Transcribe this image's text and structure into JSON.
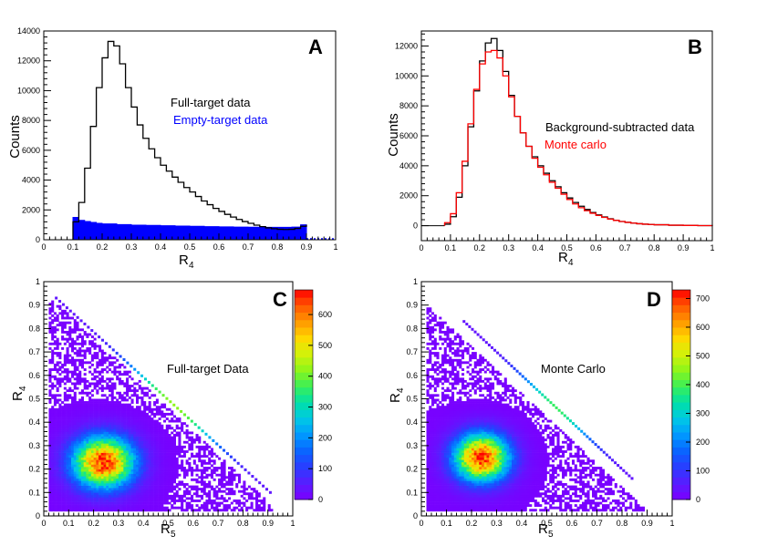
{
  "chart_data": [
    {
      "panel": "A",
      "type": "histogram",
      "xlabel": "R",
      "xlabel_sub": "4",
      "ylabel": "Counts",
      "xlim": [
        0,
        1
      ],
      "ylim": [
        0,
        14000
      ],
      "xticks": [
        "0",
        "0.1",
        "0.2",
        "0.3",
        "0.4",
        "0.5",
        "0.6",
        "0.7",
        "0.8",
        "0.9",
        "1"
      ],
      "yticks": [
        "0",
        "2000",
        "4000",
        "6000",
        "8000",
        "10000",
        "12000",
        "14000"
      ],
      "legend": [
        "Full-target data",
        "Empty-target data"
      ],
      "series": [
        {
          "name": "Full-target data",
          "color": "#000000",
          "style": "step",
          "x": [
            0.1,
            0.12,
            0.14,
            0.16,
            0.18,
            0.2,
            0.22,
            0.24,
            0.26,
            0.28,
            0.3,
            0.32,
            0.34,
            0.36,
            0.38,
            0.4,
            0.42,
            0.44,
            0.46,
            0.48,
            0.5,
            0.52,
            0.54,
            0.56,
            0.58,
            0.6,
            0.62,
            0.64,
            0.66,
            0.68,
            0.7,
            0.72,
            0.74,
            0.76,
            0.78,
            0.8,
            0.82,
            0.84,
            0.86,
            0.88,
            0.9
          ],
          "values": [
            1200,
            2500,
            4800,
            7600,
            10200,
            12200,
            13300,
            13000,
            11800,
            10200,
            8900,
            7700,
            6800,
            6100,
            5500,
            5000,
            4600,
            4200,
            3850,
            3500,
            3200,
            2900,
            2600,
            2350,
            2100,
            1900,
            1700,
            1520,
            1360,
            1220,
            1100,
            980,
            880,
            800,
            740,
            700,
            690,
            700,
            760,
            900,
            1000
          ]
        },
        {
          "name": "Empty-target data",
          "color": "#0000ff",
          "style": "filled",
          "x": [
            0.1,
            0.12,
            0.14,
            0.16,
            0.18,
            0.2,
            0.25,
            0.3,
            0.35,
            0.4,
            0.45,
            0.5,
            0.55,
            0.6,
            0.65,
            0.7,
            0.75,
            0.8,
            0.85,
            0.88,
            0.9
          ],
          "values": [
            1500,
            1300,
            1220,
            1160,
            1100,
            1060,
            1020,
            980,
            960,
            940,
            920,
            900,
            880,
            860,
            850,
            840,
            830,
            830,
            850,
            1000,
            1050
          ]
        }
      ]
    },
    {
      "panel": "B",
      "type": "histogram",
      "xlabel": "R",
      "xlabel_sub": "4",
      "ylabel": "Counts",
      "xlim": [
        0,
        1
      ],
      "ylim": [
        -1000,
        13000
      ],
      "xticks": [
        "0",
        "0.1",
        "0.2",
        "0.3",
        "0.4",
        "0.5",
        "0.6",
        "0.7",
        "0.8",
        "0.9",
        "1"
      ],
      "yticks": [
        "0",
        "2000",
        "4000",
        "6000",
        "8000",
        "10000",
        "12000"
      ],
      "legend": [
        "Background-subtracted data",
        "Monte carlo"
      ],
      "series": [
        {
          "name": "Background-subtracted data",
          "color": "#000000",
          "style": "step",
          "x": [
            0.08,
            0.1,
            0.12,
            0.14,
            0.16,
            0.18,
            0.2,
            0.22,
            0.24,
            0.26,
            0.28,
            0.3,
            0.32,
            0.34,
            0.36,
            0.38,
            0.4,
            0.42,
            0.44,
            0.46,
            0.48,
            0.5,
            0.52,
            0.54,
            0.56,
            0.58,
            0.6,
            0.62,
            0.64,
            0.66,
            0.68,
            0.7,
            0.72,
            0.74,
            0.76,
            0.78,
            0.8,
            0.85,
            0.9,
            0.95,
            1.0
          ],
          "values": [
            100,
            600,
            1900,
            4000,
            6600,
            9000,
            11000,
            12200,
            12500,
            11700,
            10300,
            8700,
            7300,
            6200,
            5300,
            4600,
            4000,
            3500,
            3000,
            2600,
            2200,
            1850,
            1550,
            1300,
            1080,
            880,
            720,
            580,
            460,
            360,
            280,
            220,
            170,
            130,
            100,
            80,
            60,
            30,
            15,
            5,
            0
          ]
        },
        {
          "name": "Monte carlo",
          "color": "#ff0000",
          "style": "step",
          "x": [
            0.08,
            0.1,
            0.12,
            0.14,
            0.16,
            0.18,
            0.2,
            0.22,
            0.24,
            0.26,
            0.28,
            0.3,
            0.32,
            0.34,
            0.36,
            0.38,
            0.4,
            0.42,
            0.44,
            0.46,
            0.48,
            0.5,
            0.52,
            0.54,
            0.56,
            0.58,
            0.6,
            0.62,
            0.64,
            0.66,
            0.68,
            0.7,
            0.72,
            0.74,
            0.76,
            0.78,
            0.8,
            0.85,
            0.9,
            0.95,
            1.0
          ],
          "values": [
            200,
            800,
            2200,
            4300,
            6800,
            9100,
            10800,
            11600,
            11700,
            11200,
            10000,
            8600,
            7300,
            6200,
            5300,
            4500,
            3900,
            3400,
            2900,
            2500,
            2100,
            1750,
            1450,
            1200,
            1000,
            830,
            680,
            550,
            440,
            350,
            280,
            220,
            170,
            130,
            100,
            80,
            60,
            30,
            15,
            5,
            0
          ]
        }
      ]
    },
    {
      "panel": "C",
      "type": "heatmap",
      "label": "Full-target Data",
      "xlabel": "R",
      "xlabel_sub": "5",
      "ylabel": "R",
      "ylabel_sub": "4",
      "xlim": [
        0,
        1
      ],
      "ylim": [
        0,
        1
      ],
      "zlim": [
        0,
        680
      ],
      "xticks": [
        "0",
        "0.1",
        "0.2",
        "0.3",
        "0.4",
        "0.5",
        "0.6",
        "0.7",
        "0.8",
        "0.9",
        "1"
      ],
      "yticks": [
        "0",
        "0.1",
        "0.2",
        "0.3",
        "0.4",
        "0.5",
        "0.6",
        "0.7",
        "0.8",
        "0.9",
        "1"
      ],
      "zticks": [
        0,
        100,
        200,
        300,
        400,
        500,
        600
      ],
      "peak": {
        "x": 0.24,
        "y": 0.23,
        "z": 650
      },
      "diagonal_edge": {
        "from": [
          0.05,
          0.93
        ],
        "to": [
          0.91,
          0.1
        ],
        "z": 380
      }
    },
    {
      "panel": "D",
      "type": "heatmap",
      "label": "Monte Carlo",
      "xlabel": "R",
      "xlabel_sub": "5",
      "ylabel": "R",
      "ylabel_sub": "4",
      "xlim": [
        0,
        1
      ],
      "ylim": [
        0,
        1
      ],
      "zlim": [
        0,
        730
      ],
      "xticks": [
        "0",
        "0.1",
        "0.2",
        "0.3",
        "0.4",
        "0.5",
        "0.6",
        "0.7",
        "0.8",
        "0.9",
        "1"
      ],
      "yticks": [
        "0",
        "0.1",
        "0.2",
        "0.3",
        "0.4",
        "0.5",
        "0.6",
        "0.7",
        "0.8",
        "0.9",
        "1"
      ],
      "zticks": [
        0,
        100,
        200,
        300,
        400,
        500,
        600,
        700
      ],
      "peak": {
        "x": 0.24,
        "y": 0.25,
        "z": 700
      },
      "diagonal_edge": {
        "from": [
          0.17,
          0.83
        ],
        "to": [
          0.84,
          0.16
        ],
        "z": 350
      }
    }
  ],
  "colors": {
    "full_target": "#000000",
    "empty_target": "#0000ff",
    "background_subtracted": "#000000",
    "monte_carlo": "#ff0000"
  }
}
